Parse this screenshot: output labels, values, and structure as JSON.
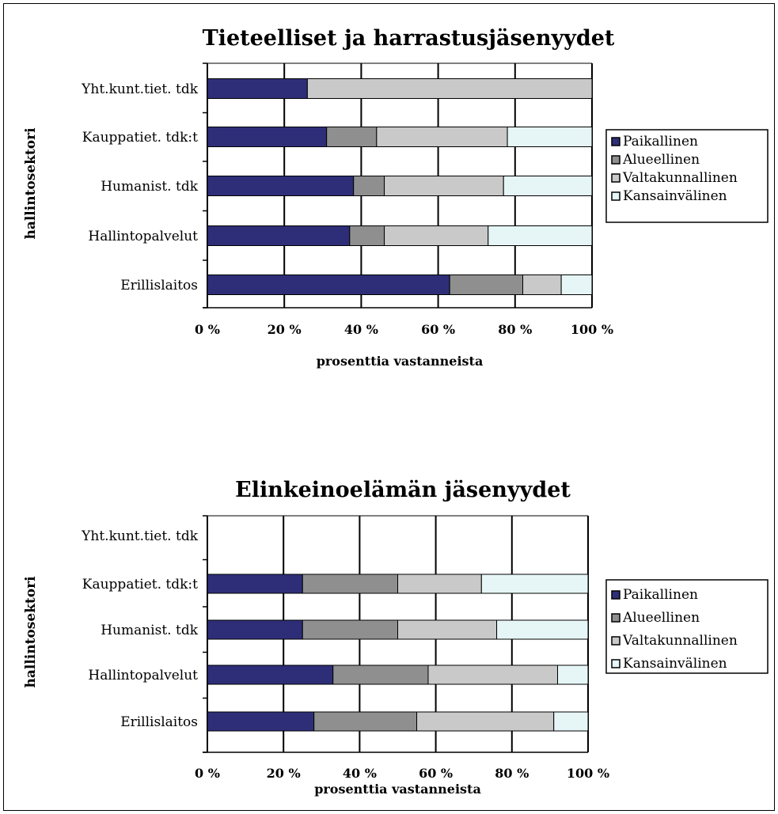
{
  "colors": {
    "Paikallinen": "#2e2e78",
    "Alueellinen": "#8f8f8f",
    "Valtakunnallinen": "#c9c9c9",
    "Kansainvälinen": "#e6f6f6",
    "grid": "#000000"
  },
  "chart_data": [
    {
      "type": "bar",
      "orientation": "horizontal-stacked-100",
      "title": "Tieteelliset ja harrastusjäsenyydet",
      "xlabel": "prosenttia vastanneista",
      "ylabel": "hallintosektori",
      "xticks": [
        "0 %",
        "20 %",
        "40 %",
        "60 %",
        "80 %",
        "100 %"
      ],
      "xlim": [
        0,
        100
      ],
      "categories": [
        "Yht.kunt.tiet. tdk",
        "Kauppatiet. tdk:t",
        "Humanist. tdk",
        "Hallintopalvelut",
        "Erillislaitos"
      ],
      "legend_position": "right",
      "grid": true,
      "series": [
        {
          "name": "Paikallinen",
          "values": [
            26,
            31,
            38,
            37,
            63
          ]
        },
        {
          "name": "Alueellinen",
          "values": [
            0,
            13,
            8,
            9,
            19
          ]
        },
        {
          "name": "Valtakunnallinen",
          "values": [
            74,
            34,
            31,
            27,
            10
          ]
        },
        {
          "name": "Kansainvälinen",
          "values": [
            0,
            22,
            23,
            27,
            8
          ]
        }
      ]
    },
    {
      "type": "bar",
      "orientation": "horizontal-stacked-100",
      "title": "Elinkeinoelämän jäsenyydet",
      "xlabel": "prosenttia vastanneista",
      "ylabel": "hallintosektori",
      "xticks": [
        "0 %",
        "20 %",
        "40 %",
        "60 %",
        "80 %",
        "100 %"
      ],
      "xlim": [
        0,
        100
      ],
      "categories": [
        "Yht.kunt.tiet. tdk",
        "Kauppatiet. tdk:t",
        "Humanist. tdk",
        "Hallintopalvelut",
        "Erillislaitos"
      ],
      "legend_position": "right",
      "grid": true,
      "series": [
        {
          "name": "Paikallinen",
          "values": [
            0,
            25,
            25,
            33,
            28
          ]
        },
        {
          "name": "Alueellinen",
          "values": [
            0,
            25,
            25,
            25,
            27
          ]
        },
        {
          "name": "Valtakunnallinen",
          "values": [
            0,
            22,
            26,
            34,
            36
          ]
        },
        {
          "name": "Kansainvälinen",
          "values": [
            0,
            28,
            24,
            8,
            9
          ]
        }
      ]
    }
  ]
}
